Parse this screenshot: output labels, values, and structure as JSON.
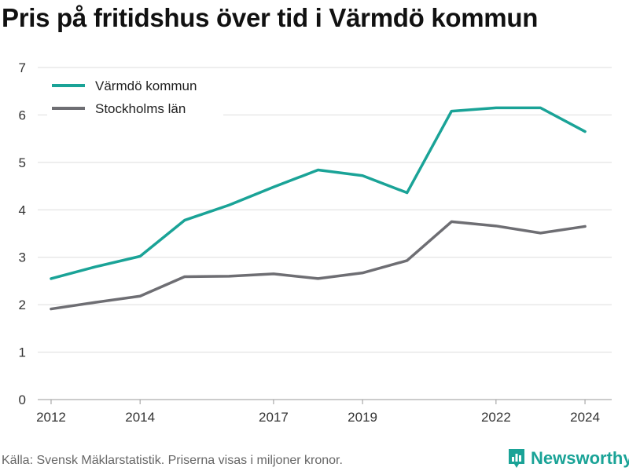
{
  "chart_data": {
    "type": "line",
    "title": "Pris på fritidshus över tid i Värmdö kommun",
    "xlabel": "",
    "ylabel": "",
    "x": [
      2012,
      2013,
      2014,
      2015,
      2016,
      2017,
      2018,
      2019,
      2020,
      2021,
      2022,
      2023,
      2024
    ],
    "xticks": [
      2012,
      2014,
      2017,
      2019,
      2022,
      2024
    ],
    "xlim": [
      2011.7,
      2024.6
    ],
    "ylim": [
      0,
      7
    ],
    "yticks": [
      0,
      1,
      2,
      3,
      4,
      5,
      6,
      7
    ],
    "grid": "horizontal",
    "legend_position": "top-left",
    "series": [
      {
        "name": "Värmdö kommun",
        "color": "#1aa397",
        "values": [
          2.55,
          2.8,
          3.02,
          3.78,
          4.1,
          4.48,
          4.84,
          4.72,
          4.36,
          6.08,
          6.15,
          6.15,
          5.65
        ]
      },
      {
        "name": "Stockholms län",
        "color": "#6e6e73",
        "values": [
          1.91,
          2.05,
          2.18,
          2.59,
          2.6,
          2.65,
          2.55,
          2.67,
          2.93,
          3.75,
          3.66,
          3.51,
          3.65
        ]
      }
    ]
  },
  "footer": {
    "source": "Källa: Svensk Mäklarstatistik. Priserna visas i miljoner kronor.",
    "brand": "Newsworthy",
    "brand_icon": "bar-chart-speech-icon",
    "brand_color": "#1aa397"
  }
}
